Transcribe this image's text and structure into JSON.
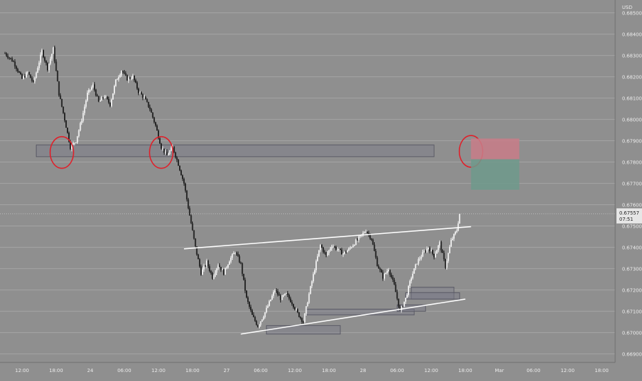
{
  "chart_data": {
    "type": "candlestick",
    "currency": "USD",
    "x_ticks": [
      "12:00",
      "18:00",
      "24",
      "06:00",
      "12:00",
      "18:00",
      "27",
      "06:00",
      "12:00",
      "18:00",
      "28",
      "06:00",
      "12:00",
      "18:00",
      "Mar",
      "06:00",
      "12:00",
      "18:00"
    ],
    "x_tick_hours": [
      -36,
      -30,
      -24,
      -18,
      -12,
      -6,
      0,
      6,
      12,
      18,
      24,
      30,
      36,
      42,
      48,
      54,
      60,
      66
    ],
    "y_ticks": [
      "0.68500",
      "0.68400",
      "0.68300",
      "0.68200",
      "0.68100",
      "0.68000",
      "0.67900",
      "0.67800",
      "0.67700",
      "0.67600",
      "0.67500",
      "0.67400",
      "0.67300",
      "0.67200",
      "0.67100",
      "0.67000",
      "0.66900"
    ],
    "ylim": [
      0.6686,
      0.6856
    ],
    "last_price": {
      "value": 0.67557,
      "label": "0.67557",
      "countdown": "07:51"
    },
    "grid": true,
    "price_path": [
      [
        -39,
        0.6831
      ],
      [
        -37.5,
        0.6827
      ],
      [
        -36,
        0.6819
      ],
      [
        -35,
        0.6822
      ],
      [
        -34,
        0.6817
      ],
      [
        -32.5,
        0.6832
      ],
      [
        -31.5,
        0.6824
      ],
      [
        -30.5,
        0.6833
      ],
      [
        -29.5,
        0.6812
      ],
      [
        -28.5,
        0.68
      ],
      [
        -27.5,
        0.6787
      ],
      [
        -26.5,
        0.679
      ],
      [
        -25.5,
        0.68
      ],
      [
        -24.5,
        0.6812
      ],
      [
        -23.5,
        0.6816
      ],
      [
        -22.5,
        0.6808
      ],
      [
        -21.5,
        0.6811
      ],
      [
        -20.5,
        0.6807
      ],
      [
        -19.5,
        0.6818
      ],
      [
        -18.5,
        0.6823
      ],
      [
        -17.5,
        0.6819
      ],
      [
        -16.5,
        0.682
      ],
      [
        -15.5,
        0.6813
      ],
      [
        -14.5,
        0.681
      ],
      [
        -13.5,
        0.6805
      ],
      [
        -12.5,
        0.6797
      ],
      [
        -11.5,
        0.6787
      ],
      [
        -10.5,
        0.6783
      ],
      [
        -9.5,
        0.6787
      ],
      [
        -8.5,
        0.6779
      ],
      [
        -7.5,
        0.677
      ],
      [
        -6.5,
        0.6755
      ],
      [
        -5.5,
        0.674
      ],
      [
        -4.5,
        0.6728
      ],
      [
        -3.5,
        0.6733
      ],
      [
        -2.5,
        0.6726
      ],
      [
        -1.5,
        0.6732
      ],
      [
        -0.5,
        0.6728
      ],
      [
        0.5,
        0.6734
      ],
      [
        1.5,
        0.6738
      ],
      [
        2.5,
        0.6732
      ],
      [
        3.5,
        0.6716
      ],
      [
        4.5,
        0.6708
      ],
      [
        5.5,
        0.6703
      ],
      [
        6.5,
        0.6708
      ],
      [
        7.5,
        0.6714
      ],
      [
        8.5,
        0.672
      ],
      [
        9.5,
        0.6716
      ],
      [
        10.5,
        0.6718
      ],
      [
        11.5,
        0.6714
      ],
      [
        12.5,
        0.6709
      ],
      [
        13.5,
        0.6705
      ],
      [
        14.5,
        0.6718
      ],
      [
        15.5,
        0.673
      ],
      [
        16.5,
        0.6741
      ],
      [
        17.5,
        0.6736
      ],
      [
        18.5,
        0.6741
      ],
      [
        19.5,
        0.6739
      ],
      [
        20.5,
        0.6737
      ],
      [
        21.5,
        0.6739
      ],
      [
        22.5,
        0.6742
      ],
      [
        23.5,
        0.6745
      ],
      [
        24.5,
        0.6748
      ],
      [
        25.5,
        0.6744
      ],
      [
        26.5,
        0.6732
      ],
      [
        27.5,
        0.6726
      ],
      [
        28.5,
        0.673
      ],
      [
        29.5,
        0.6722
      ],
      [
        30.5,
        0.671
      ],
      [
        31.5,
        0.6716
      ],
      [
        32.5,
        0.6726
      ],
      [
        33.5,
        0.6733
      ],
      [
        34.5,
        0.6737
      ],
      [
        35.5,
        0.674
      ],
      [
        36.5,
        0.6736
      ],
      [
        37.5,
        0.6742
      ],
      [
        38.5,
        0.6731
      ],
      [
        39.5,
        0.6743
      ],
      [
        40.5,
        0.6748
      ],
      [
        41,
        0.67557
      ]
    ],
    "annotations": [
      {
        "kind": "zone",
        "x": [
          -33.5,
          36.5
        ],
        "y": [
          0.67825,
          0.6788
        ],
        "fill": "#7c7c8a"
      },
      {
        "kind": "zone",
        "x": [
          7,
          20
        ],
        "y": [
          0.66993,
          0.67033
        ],
        "fill": "#7c7c8a"
      },
      {
        "kind": "zone",
        "x": [
          14,
          33
        ],
        "y": [
          0.67083,
          0.6711
        ],
        "fill": "#7c7c8a"
      },
      {
        "kind": "zone",
        "x": [
          32.5,
          40
        ],
        "y": [
          0.67157,
          0.67213
        ],
        "fill": "#7c7c8a"
      },
      {
        "kind": "zone",
        "x": [
          31.5,
          41
        ],
        "y": [
          0.67157,
          0.67187
        ],
        "fill": "#7c7c8a"
      },
      {
        "kind": "zone",
        "x": [
          30,
          35
        ],
        "y": [
          0.671,
          0.6713
        ],
        "fill": "#7c7c8a"
      },
      {
        "kind": "trendline",
        "x": [
          -7.5,
          43
        ],
        "y": [
          0.67393,
          0.67497
        ],
        "color": "#ffffff"
      },
      {
        "kind": "trendline",
        "x": [
          2.5,
          42
        ],
        "y": [
          0.66993,
          0.67157
        ],
        "color": "#ffffff"
      },
      {
        "kind": "circle",
        "x": -29,
        "y": 0.67845
      },
      {
        "kind": "circle",
        "x": -11.5,
        "y": 0.67845
      },
      {
        "kind": "circle",
        "x": 43,
        "y": 0.6785
      },
      {
        "kind": "stop_zone",
        "x": [
          43,
          51.5
        ],
        "y": [
          0.67813,
          0.6791
        ],
        "fill": "#c97c88"
      },
      {
        "kind": "target_zone",
        "x": [
          43,
          51.5
        ],
        "y": [
          0.6767,
          0.67813
        ],
        "fill": "#6e9a8c"
      }
    ]
  }
}
